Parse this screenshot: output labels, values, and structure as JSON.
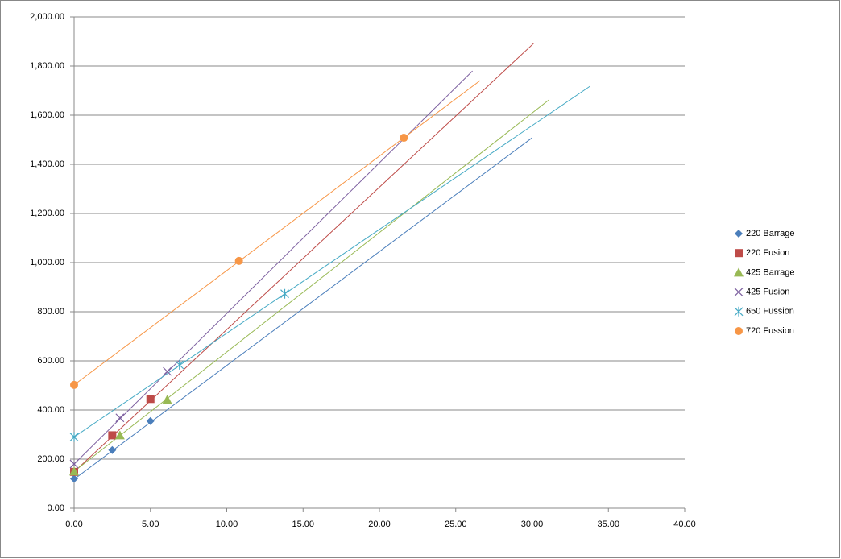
{
  "chart_data": {
    "type": "scatter",
    "xlim": [
      0,
      40
    ],
    "xticks": [
      {
        "value": 0,
        "label": "0.00"
      },
      {
        "value": 5,
        "label": "5.00"
      },
      {
        "value": 10,
        "label": "10.00"
      },
      {
        "value": 15,
        "label": "15.00"
      },
      {
        "value": 20,
        "label": "20.00"
      },
      {
        "value": 25,
        "label": "25.00"
      },
      {
        "value": 30,
        "label": "30.00"
      },
      {
        "value": 35,
        "label": "35.00"
      },
      {
        "value": 40,
        "label": "40.00"
      }
    ],
    "ylim": [
      0,
      2000
    ],
    "yticks": [
      {
        "value": 0,
        "label": "0.00"
      },
      {
        "value": 200,
        "label": "200.00"
      },
      {
        "value": 400,
        "label": "400.00"
      },
      {
        "value": 600,
        "label": "600.00"
      },
      {
        "value": 800,
        "label": "800.00"
      },
      {
        "value": 1000,
        "label": "1,000.00"
      },
      {
        "value": 1200,
        "label": "1,200.00"
      },
      {
        "value": 1400,
        "label": "1,400.00"
      },
      {
        "value": 1600,
        "label": "1,600.00"
      },
      {
        "value": 1800,
        "label": "1,800.00"
      },
      {
        "value": 2000,
        "label": "2,000.00"
      }
    ],
    "grid": true,
    "legend": "right",
    "series": [
      {
        "name": "220 Barrage",
        "color": "#4a7ebb",
        "marker": "diamond",
        "x": [
          0,
          2.5,
          5
        ],
        "values": [
          120,
          237,
          355
        ],
        "trendline": {
          "x": [
            0,
            30
          ],
          "y": [
            118,
            1508
          ]
        }
      },
      {
        "name": "220 Fusion",
        "color": "#be4b48",
        "marker": "square",
        "x": [
          0,
          2.5,
          5
        ],
        "values": [
          148,
          297,
          445
        ],
        "trendline": {
          "x": [
            0,
            30.1
          ],
          "y": [
            148,
            1892
          ]
        }
      },
      {
        "name": "425 Barrage",
        "color": "#98b954",
        "marker": "triangle",
        "x": [
          0,
          3,
          6.1
        ],
        "values": [
          150,
          297,
          442
        ],
        "trendline": {
          "x": [
            0,
            31.1
          ],
          "y": [
            150,
            1662
          ]
        }
      },
      {
        "name": "425 Fusion",
        "color": "#7d60a0",
        "marker": "x",
        "x": [
          0,
          3,
          6.1
        ],
        "values": [
          180,
          368,
          557
        ],
        "trendline": {
          "x": [
            0,
            26.1
          ],
          "y": [
            180,
            1780
          ]
        }
      },
      {
        "name": "650 Fussion",
        "color": "#46aac5",
        "marker": "star",
        "x": [
          0,
          6.9,
          13.8
        ],
        "values": [
          290,
          584,
          873
        ],
        "trendline": {
          "x": [
            0,
            33.8
          ],
          "y": [
            290,
            1718
          ]
        }
      },
      {
        "name": "720 Fussion",
        "color": "#f79646",
        "marker": "circle",
        "x": [
          0,
          10.8,
          21.6
        ],
        "values": [
          502,
          1007,
          1508
        ],
        "trendline": {
          "x": [
            0,
            26.6
          ],
          "y": [
            502,
            1741
          ]
        }
      }
    ]
  }
}
